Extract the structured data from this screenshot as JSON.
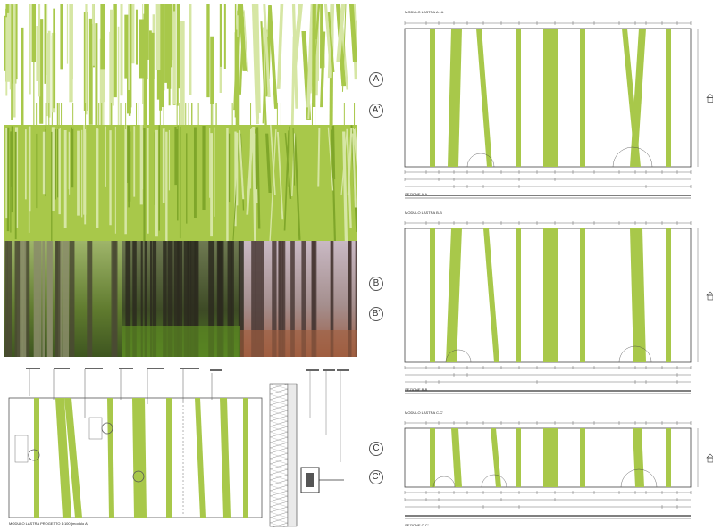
{
  "section_markers": {
    "A": "A",
    "A_prime": "A'",
    "B": "B",
    "B_prime": "B'",
    "C": "C",
    "C_prime": "C'"
  },
  "panels": {
    "AA": {
      "module_title": "MODULO LASTRA A - A",
      "section_title": "SEZIONE A-A"
    },
    "BB": {
      "module_title": "MODULO LASTRA B-B",
      "section_title": "SEZIONE B-B"
    },
    "CC": {
      "module_title": "MODULO LASTRA C-C'",
      "section_title": "SEZIONE C-C'"
    }
  },
  "bottom_drawing": {
    "caption": "MODULO LASTRA PROGETTO 1:100 (modulo A)"
  },
  "colors": {
    "stripe_green": "#a8c84a",
    "light_green": "#d6e6a4",
    "dark_green": "#7fa62a",
    "line": "#444444"
  },
  "photos": [
    {
      "name": "forest-photo-green",
      "kind": "mixed forest"
    },
    {
      "name": "forest-photo-moss",
      "kind": "conifer forest with moss"
    },
    {
      "name": "forest-photo-autumn",
      "kind": "bare autumn forest"
    }
  ]
}
